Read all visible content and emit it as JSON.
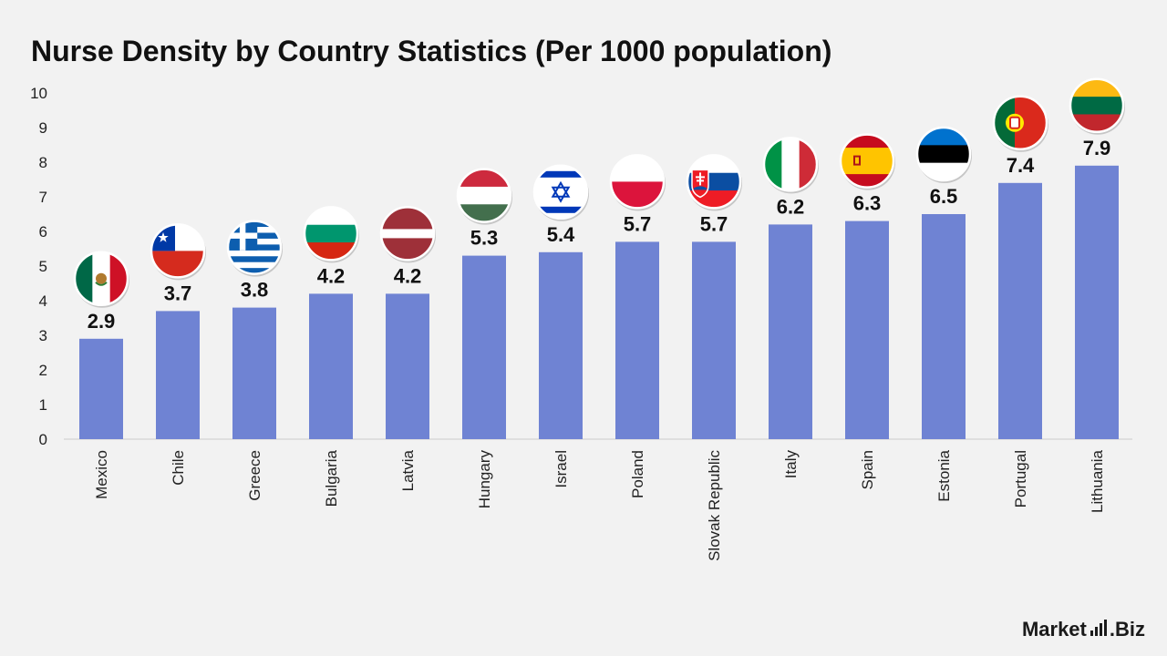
{
  "chart_data": {
    "type": "bar",
    "title": "Nurse Density by Country Statistics (Per 1000 population)",
    "xlabel": "",
    "ylabel": "",
    "ylim": [
      0,
      10
    ],
    "yticks": [
      0,
      1,
      2,
      3,
      4,
      5,
      6,
      7,
      8,
      9,
      10
    ],
    "grid": false,
    "legend": "none",
    "bar_color": "#6f83d3",
    "categories": [
      "Mexico",
      "Chile",
      "Greece",
      "Bulgaria",
      "Latvia",
      "Hungary",
      "Israel",
      "Poland",
      "Slovak Republic",
      "Italy",
      "Spain",
      "Estonia",
      "Portugal",
      "Lithuania"
    ],
    "values": [
      2.9,
      3.7,
      3.8,
      4.2,
      4.2,
      5.3,
      5.4,
      5.7,
      5.7,
      6.2,
      6.3,
      6.5,
      7.4,
      7.9
    ],
    "value_labels": [
      "2.9",
      "3.7",
      "3.8",
      "4.2",
      "4.2",
      "5.3",
      "5.4",
      "5.7",
      "5.7",
      "6.2",
      "6.3",
      "6.5",
      "7.4",
      "7.9"
    ],
    "flag_icons": [
      "mexico-flag-icon",
      "chile-flag-icon",
      "greece-flag-icon",
      "bulgaria-flag-icon",
      "latvia-flag-icon",
      "hungary-flag-icon",
      "israel-flag-icon",
      "poland-flag-icon",
      "slovak-republic-flag-icon",
      "italy-flag-icon",
      "spain-flag-icon",
      "estonia-flag-icon",
      "portugal-flag-icon",
      "lithuania-flag-icon"
    ]
  },
  "brand": {
    "name": "Market",
    "suffix": ".Biz"
  }
}
